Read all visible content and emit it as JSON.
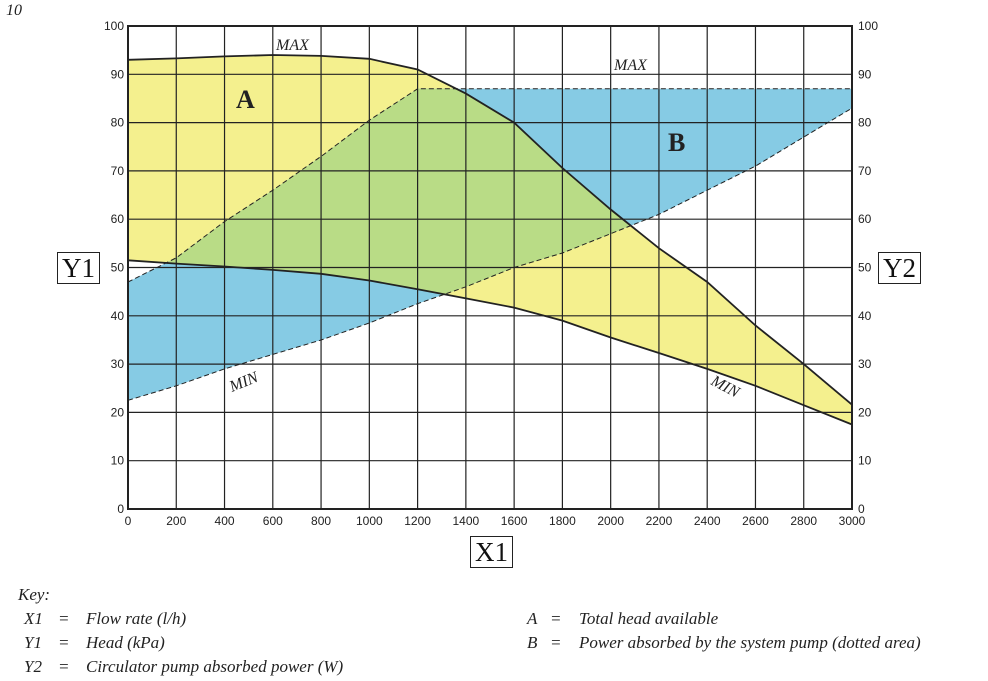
{
  "page_number": "10",
  "chart_data": {
    "type": "area",
    "x_axis": {
      "label": "X1",
      "range": [
        0,
        3000
      ],
      "ticks": [
        0,
        200,
        400,
        600,
        800,
        1000,
        1200,
        1400,
        1600,
        1800,
        2000,
        2200,
        2400,
        2600,
        2800,
        3000
      ]
    },
    "y_axis_left": {
      "label": "Y1",
      "range": [
        0,
        100
      ],
      "ticks": [
        0,
        10,
        20,
        30,
        40,
        50,
        60,
        70,
        80,
        90,
        100
      ]
    },
    "y_axis_right": {
      "label": "Y2",
      "range": [
        0,
        100
      ],
      "ticks": [
        0,
        10,
        20,
        30,
        40,
        50,
        60,
        70,
        80,
        90,
        100
      ]
    },
    "grid": true,
    "x": [
      0,
      200,
      400,
      600,
      800,
      1000,
      1200,
      1400,
      1600,
      1800,
      2000,
      2200,
      2400,
      2600,
      2800,
      3000
    ],
    "series": [
      {
        "name": "MAX",
        "axis": "Y1",
        "style": "solid",
        "values": [
          93,
          93.3,
          93.7,
          94,
          93.8,
          93.2,
          91,
          86,
          80,
          70.6,
          62,
          54,
          47,
          38,
          30,
          21.6
        ]
      },
      {
        "name": "MIN",
        "axis": "Y1",
        "style": "solid",
        "values": [
          51.5,
          50.8,
          50.2,
          49.5,
          48.7,
          47.3,
          45.5,
          43.6,
          41.7,
          39,
          35.5,
          32.3,
          29,
          25.5,
          21.5,
          17.5
        ]
      },
      {
        "name": "MAX",
        "axis": "Y2",
        "style": "dashed",
        "values": [
          47,
          52,
          59.5,
          66,
          73,
          80.5,
          87,
          87,
          87,
          87,
          87,
          87,
          87,
          87,
          87,
          87
        ]
      },
      {
        "name": "MIN",
        "axis": "Y2",
        "style": "dashed",
        "values": [
          22.5,
          25.5,
          29,
          32,
          35,
          38.5,
          42.5,
          46,
          50,
          53,
          57,
          61,
          66,
          71,
          77,
          83
        ]
      }
    ],
    "regions": [
      {
        "label": "A",
        "between": [
          "Y1 MAX",
          "Y1 MIN"
        ],
        "color": "#f4f08e"
      },
      {
        "label": "B",
        "between": [
          "Y2 MAX",
          "Y2 MIN"
        ],
        "color": "#86cbe4"
      }
    ],
    "overlap_color": "#b9dc86"
  },
  "key": {
    "title": "Key:",
    "items": [
      {
        "sym": "X1",
        "eq": "=",
        "desc": "Flow rate (l/h)"
      },
      {
        "sym": "Y1",
        "eq": "=",
        "desc": "Head (kPa)"
      },
      {
        "sym": "Y2",
        "eq": "=",
        "desc": "Circulator pump absorbed power (W)"
      },
      {
        "sym": "A",
        "eq": "=",
        "desc": "Total head available"
      },
      {
        "sym": "B",
        "eq": "=",
        "desc": "Power absorbed by the system pump (dotted area)"
      }
    ]
  }
}
